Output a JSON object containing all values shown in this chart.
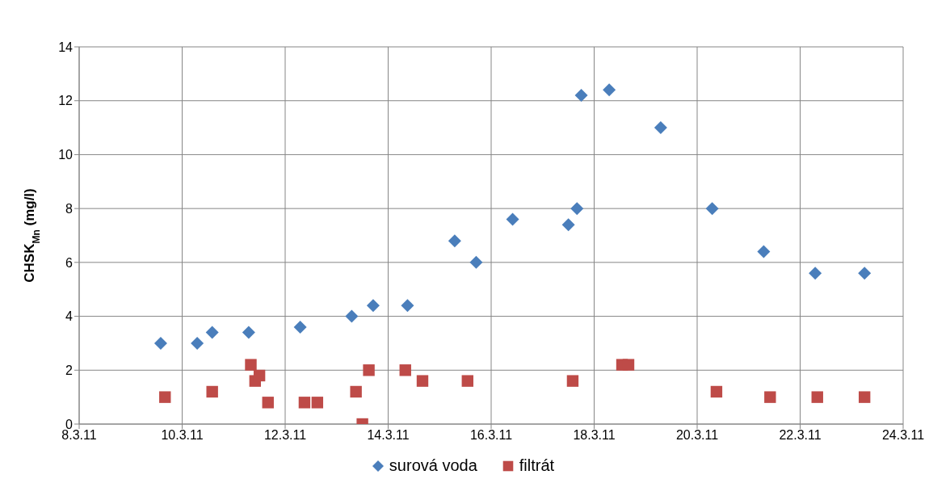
{
  "chart_data": {
    "type": "scatter",
    "ylabel": "CHSK$_{Mn}$ (mg/l)",
    "xlim": [
      "--03-08",
      "--03-24"
    ],
    "xticks": [
      {
        "value": "--03-08",
        "label": "8.3.11"
      },
      {
        "value": "--03-10",
        "label": "10.3.11"
      },
      {
        "value": "--03-12",
        "label": "12.3.11"
      },
      {
        "value": "--03-14",
        "label": "14.3.11"
      },
      {
        "value": "--03-16",
        "label": "16.3.11"
      },
      {
        "value": "--03-18",
        "label": "18.3.11"
      },
      {
        "value": "--03-20",
        "label": "20.3.11"
      },
      {
        "value": "--03-22",
        "label": "22.3.11"
      },
      {
        "value": "--03-24",
        "label": "24.3.11"
      }
    ],
    "ylim": [
      0,
      14
    ],
    "yticks": [
      0,
      2,
      4,
      6,
      8,
      10,
      12,
      14
    ],
    "grid": true,
    "legend": "bottom",
    "series": [
      {
        "name": "surová voda",
        "color": "#4a7ebb",
        "marker": "diamond",
        "x": [
          "--03-09T14:00",
          "--03-10T07:00",
          "--03-10T14:00",
          "--03-11T07:00",
          "--03-12T07:00",
          "--03-13T07:00",
          "--03-13T17:00",
          "--03-14T09:00",
          "--03-15T07:00",
          "--03-15T17:00",
          "--03-16T10:00",
          "--03-17T12:00",
          "--03-17T16:00",
          "--03-17T18:00",
          "--03-18T07:00",
          "--03-19T07:00",
          "--03-20T07:00",
          "--03-21T07:00",
          "--03-22T07:00",
          "--03-23T06:00"
        ],
        "values": [
          3.0,
          3.0,
          3.4,
          3.4,
          3.6,
          4.0,
          4.4,
          4.4,
          6.8,
          6.0,
          7.6,
          7.4,
          8.0,
          12.2,
          12.4,
          11.0,
          8.0,
          6.4,
          5.6,
          5.6
        ]
      },
      {
        "name": "filtrát",
        "color": "#be4b48",
        "marker": "square",
        "x": [
          "--03-09T16:00",
          "--03-10T14:00",
          "--03-11T08:00",
          "--03-11T10:00",
          "--03-11T12:00",
          "--03-11T16:00",
          "--03-12T09:00",
          "--03-12T15:00",
          "--03-13T09:00",
          "--03-13T12:00",
          "--03-13T15:00",
          "--03-14T08:00",
          "--03-14T16:00",
          "--03-15T13:00",
          "--03-17T14:00",
          "--03-18T13:00",
          "--03-18T16:00",
          "--03-20T09:00",
          "--03-21T10:00",
          "--03-22T08:00",
          "--03-23T06:00"
        ],
        "values": [
          1.0,
          1.2,
          2.2,
          1.6,
          1.8,
          0.8,
          0.8,
          0.8,
          1.2,
          0,
          2.0,
          2.0,
          1.6,
          1.6,
          1.6,
          2.2,
          2.2,
          1.2,
          1.0,
          1.0,
          1.0
        ]
      }
    ]
  }
}
